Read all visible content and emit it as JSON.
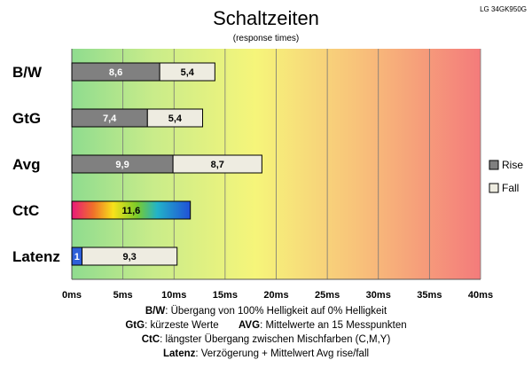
{
  "chart_data": {
    "type": "bar",
    "orientation": "horizontal",
    "stacked": true,
    "title": "Schaltzeiten",
    "subtitle": "(response times)",
    "model": "LG 34GK950G",
    "xlim": [
      0,
      40
    ],
    "xticks": [
      "0ms",
      "5ms",
      "10ms",
      "15ms",
      "20ms",
      "25ms",
      "30ms",
      "35ms",
      "40ms"
    ],
    "categories": [
      "B/W",
      "GtG",
      "Avg",
      "CtC",
      "Latenz"
    ],
    "series": [
      {
        "name": "Rise",
        "values": [
          8.6,
          7.4,
          9.9,
          null,
          null
        ]
      },
      {
        "name": "Fall",
        "values": [
          5.4,
          5.4,
          8.7,
          null,
          null
        ]
      }
    ],
    "extra": {
      "ctc": 11.6,
      "latenz_delay": 1,
      "latenz_avg": 9.3
    },
    "value_labels": {
      "B/W": [
        "8,6",
        "5,4"
      ],
      "GtG": [
        "7,4",
        "5,4"
      ],
      "Avg": [
        "9,9",
        "8,7"
      ],
      "CtC": [
        "11,6"
      ],
      "Latenz": [
        "1",
        "9,3"
      ]
    },
    "legend": [
      "Rise",
      "Fall"
    ],
    "legend_position": "right",
    "grid": true,
    "background": "gradient green-yellow-red"
  },
  "footer": {
    "bw_key": "B/W",
    "bw_text": ":  Übergang von 100% Helligkeit auf 0% Helligkeit",
    "gtg_key": "GtG",
    "gtg_text": ": kürzeste  Werte",
    "avg_key": "AVG",
    "avg_text": ": Mittelwerte  an 15 Messpunkten",
    "ctc_key": "CtC",
    "ctc_text": ": längster Übergang  zwischen Mischfarben (C,M,Y)",
    "lat_key": "Latenz",
    "lat_text": ": Verzögerung  + Mittelwert  Avg rise/fall"
  },
  "colors": {
    "rise": "#808080",
    "fall": "#eeece1",
    "latency": "#2e5fd9",
    "bg_green": "#8fdc8f",
    "bg_yellow": "#f6f57a",
    "bg_red": "#f47b7b"
  }
}
